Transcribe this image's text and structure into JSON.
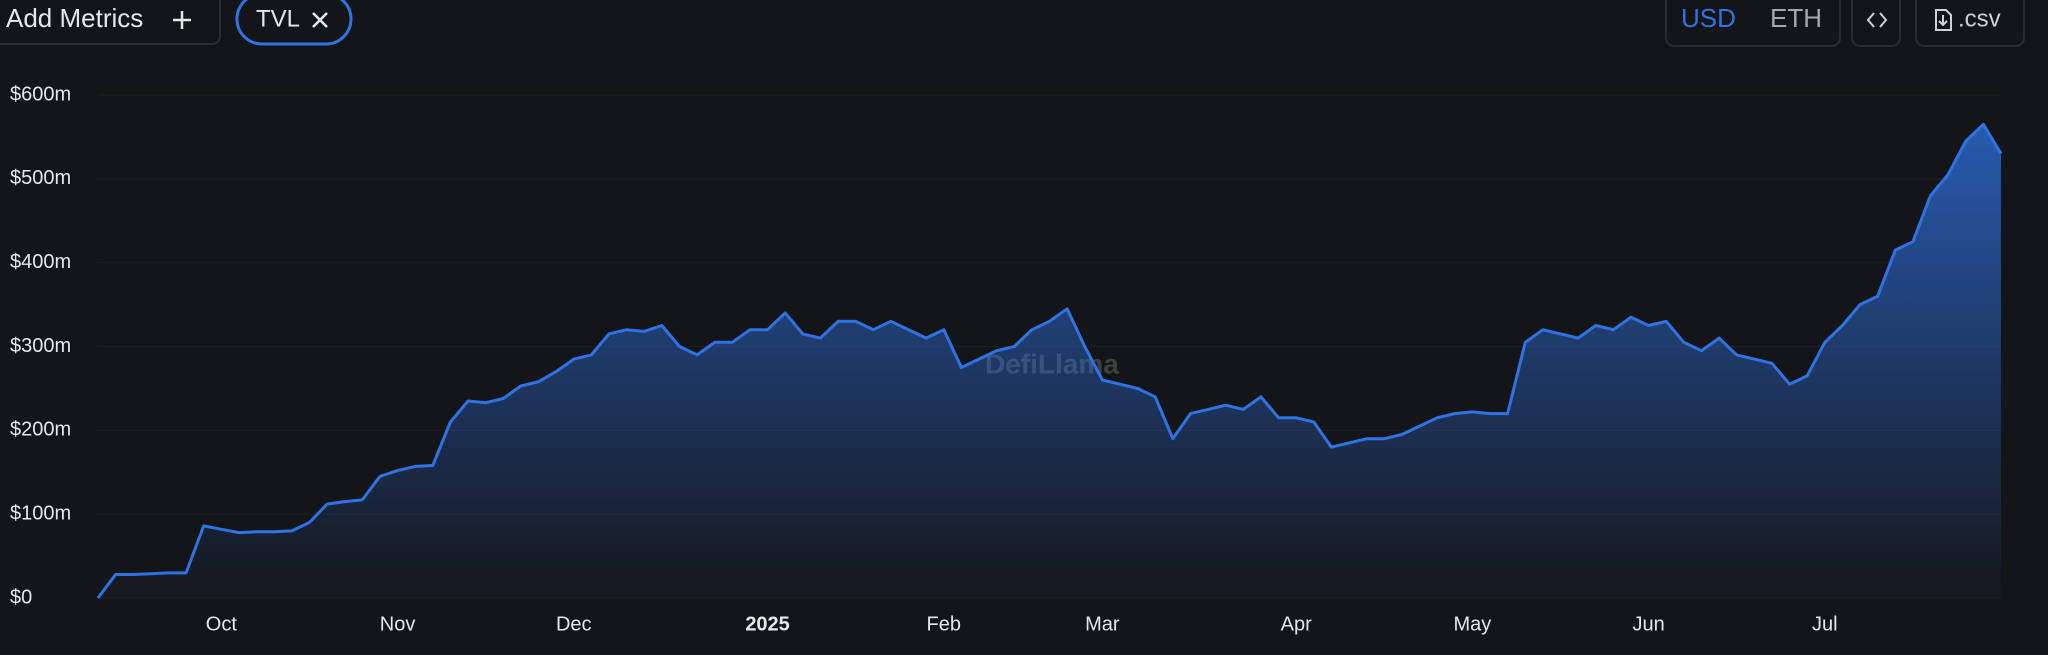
{
  "toolbar": {
    "add_metrics": "Add Metrics",
    "metric": "TVL",
    "currencies": [
      "USD",
      "ETH"
    ],
    "csv": ".csv"
  },
  "watermark": "DefiLlama",
  "chart_data": {
    "type": "area",
    "color": "#2f72e3",
    "grid": true,
    "ylim": [
      0,
      600
    ],
    "yticks": [
      {
        "value": 0,
        "label": "$0"
      },
      {
        "value": 100,
        "label": "$100m"
      },
      {
        "value": 200,
        "label": "$200m"
      },
      {
        "value": 300,
        "label": "$300m"
      },
      {
        "value": 400,
        "label": "$400m"
      },
      {
        "value": 500,
        "label": "$500m"
      },
      {
        "value": 600,
        "label": "$600m"
      }
    ],
    "categories": [
      null,
      null,
      null,
      null,
      null,
      null,
      null,
      "Oct",
      null,
      null,
      null,
      null,
      null,
      null,
      null,
      null,
      null,
      "Nov",
      null,
      null,
      null,
      null,
      null,
      null,
      null,
      null,
      null,
      "Dec",
      null,
      null,
      null,
      null,
      null,
      null,
      null,
      null,
      null,
      null,
      "2025",
      null,
      null,
      null,
      null,
      null,
      null,
      null,
      null,
      null,
      "Feb",
      null,
      null,
      null,
      null,
      null,
      null,
      null,
      null,
      "Mar",
      null,
      null,
      null,
      null,
      null,
      null,
      null,
      null,
      null,
      null,
      "Apr",
      null,
      null,
      null,
      null,
      null,
      null,
      null,
      null,
      null,
      "May",
      null,
      null,
      null,
      null,
      null,
      null,
      null,
      null,
      null,
      "Jun",
      null,
      null,
      null,
      null,
      null,
      null,
      null,
      null,
      null,
      "Jul",
      null,
      null,
      null,
      null,
      null,
      null,
      null,
      null,
      null,
      null
    ],
    "values": [
      0,
      28,
      28,
      29,
      30,
      30,
      86,
      82,
      78,
      79,
      79,
      80,
      90,
      112,
      115,
      117,
      145,
      152,
      157,
      158,
      210,
      235,
      233,
      238,
      253,
      258,
      270,
      285,
      290,
      315,
      320,
      318,
      325,
      300,
      290,
      305,
      305,
      320,
      320,
      340,
      315,
      310,
      330,
      330,
      320,
      330,
      320,
      310,
      320,
      275,
      285,
      295,
      300,
      320,
      330,
      345,
      300,
      260,
      255,
      250,
      240,
      190,
      220,
      225,
      230,
      225,
      240,
      215,
      215,
      210,
      180,
      185,
      190,
      190,
      195,
      205,
      215,
      220,
      222,
      220,
      220,
      305,
      320,
      315,
      310,
      325,
      320,
      335,
      325,
      330,
      305,
      295,
      310,
      290,
      285,
      280,
      255,
      265,
      305,
      325,
      350,
      360,
      415,
      425,
      480,
      505,
      545,
      565,
      530
    ]
  }
}
